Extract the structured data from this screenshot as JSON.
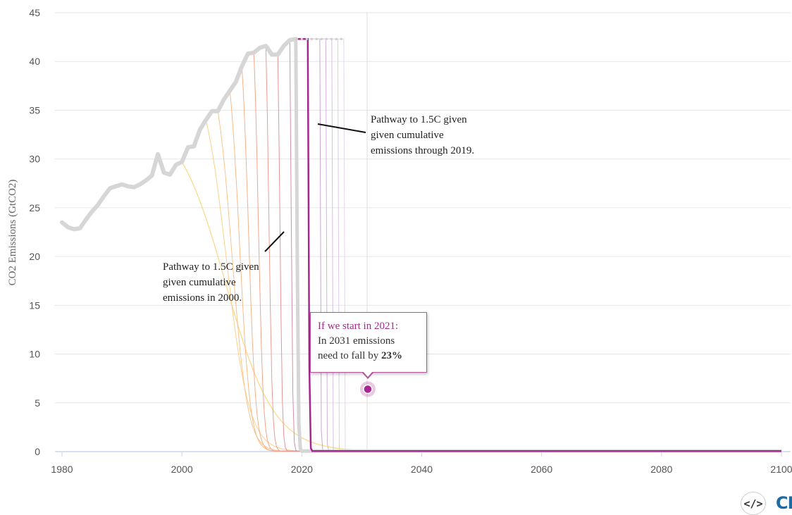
{
  "chart_data": {
    "type": "line",
    "xlabel": "",
    "ylabel": "CO2 Emissions (GtCO2)",
    "xlim": [
      1980,
      2100
    ],
    "ylim": [
      0,
      45
    ],
    "x_ticks": [
      "1980",
      "2000",
      "2020",
      "2040",
      "2060",
      "2080",
      "2100"
    ],
    "y_ticks": [
      "0",
      "5",
      "10",
      "15",
      "20",
      "25",
      "30",
      "35",
      "40",
      "45"
    ],
    "grid": true,
    "current_year_marker": 2031,
    "historical": {
      "x": [
        1980,
        1981,
        1982,
        1983,
        1984,
        1985,
        1986,
        1987,
        1988,
        1989,
        1990,
        1991,
        1992,
        1993,
        1994,
        1995,
        1996,
        1997,
        1998,
        1999,
        2000,
        2001,
        2002,
        2003,
        2004,
        2005,
        2006,
        2007,
        2008,
        2009,
        2010,
        2011,
        2012,
        2013,
        2014,
        2015,
        2016,
        2017,
        2018,
        2019
      ],
      "y": [
        23.5,
        23.0,
        22.8,
        22.9,
        23.8,
        24.6,
        25.3,
        26.2,
        27.0,
        27.2,
        27.4,
        27.2,
        27.1,
        27.4,
        27.8,
        28.3,
        30.5,
        28.6,
        28.4,
        29.4,
        29.7,
        31.2,
        31.3,
        33.0,
        34.0,
        34.9,
        34.9,
        36.1,
        37.0,
        37.9,
        39.5,
        40.8,
        40.9,
        41.4,
        41.6,
        40.7,
        40.7,
        41.6,
        42.2,
        42.3
      ]
    },
    "pathways": [
      {
        "start": 2000,
        "color": "#fcd98c",
        "width": 1.3
      },
      {
        "start": 2004,
        "color": "#fad08a",
        "width": 1
      },
      {
        "start": 2006,
        "color": "#f8c58a",
        "width": 1
      },
      {
        "start": 2008,
        "color": "#f6bb89",
        "width": 1
      },
      {
        "start": 2010,
        "color": "#f4b08a",
        "width": 1
      },
      {
        "start": 2012,
        "color": "#f0a58c",
        "width": 1
      },
      {
        "start": 2014,
        "color": "#ec9b90",
        "width": 1
      },
      {
        "start": 2016,
        "color": "#e49397",
        "width": 1
      },
      {
        "start": 2018,
        "color": "#d48fa4",
        "width": 1
      },
      {
        "start": 2019,
        "color": "#d6d6d6",
        "width": 5
      },
      {
        "start": 2021,
        "color": "#a6278f",
        "width": 2.5
      },
      {
        "start": 2023,
        "color": "#cba3d5",
        "width": 1
      },
      {
        "start": 2024,
        "color": "#d2b0db",
        "width": 1
      },
      {
        "start": 2025,
        "color": "#d9bde2",
        "width": 1
      },
      {
        "start": 2026,
        "color": "#dfcae6",
        "width": 1
      },
      {
        "start": 2027,
        "color": "#e5d5eb",
        "width": 1
      }
    ],
    "highlight_point": {
      "x": 2031,
      "y": 6.4
    }
  },
  "annotations": {
    "a2019": [
      "Pathway to 1.5C given",
      "given cumulative",
      "emissions through 2019."
    ],
    "a2000": [
      "Pathway to 1.5C given",
      "given cumulative",
      "emissions in 2000."
    ]
  },
  "tooltip": {
    "head": "If we start in 2021:",
    "line2": "In 2031 emissions",
    "line3_prefix": "need to fall by ",
    "line3_bold": "23%"
  },
  "embed_label": "</>",
  "logo_text": "CI",
  "colors": {
    "highlight": "#a6278f",
    "historical": "#d6d6d6",
    "grid": "#e6e6e6"
  }
}
